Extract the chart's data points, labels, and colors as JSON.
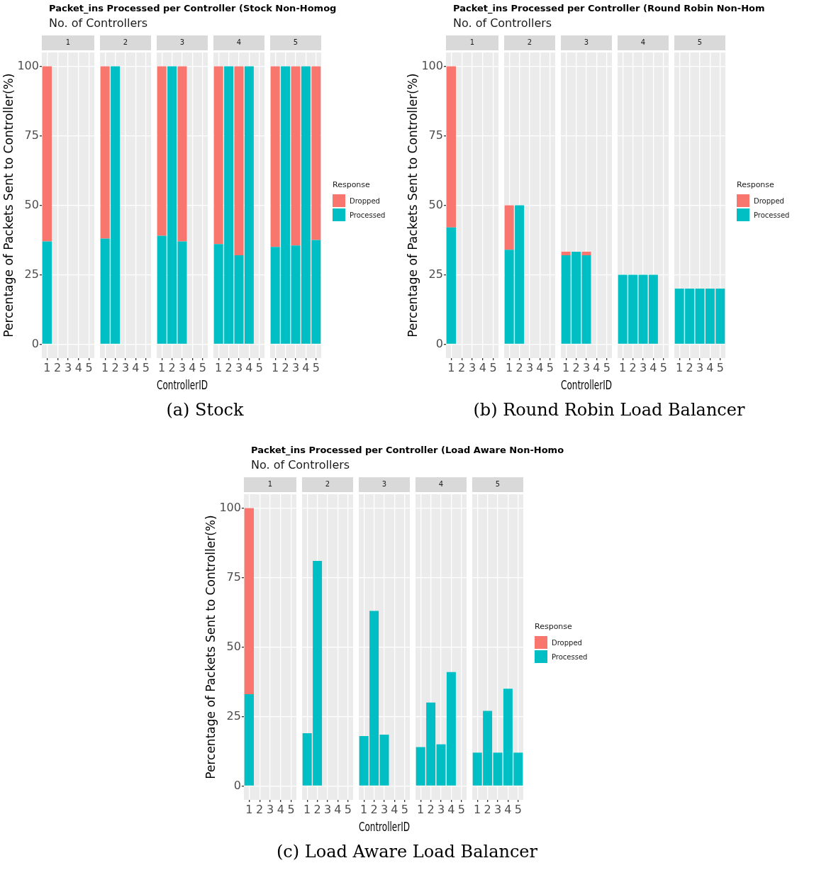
{
  "chart_data": [
    {
      "type": "other",
      "title": "Packet_ins Processed per Controller (Stock Non-Homog",
      "subtitle": "No. of Controllers",
      "annotations": [
        "(a) Stock"
      ]
    },
    {
      "type": "bar",
      "title": "1",
      "categories": [
        "1",
        "2",
        "3",
        "4",
        "5"
      ],
      "stacked": true,
      "ylim": [
        -5,
        105
      ],
      "yticks": [
        0,
        25,
        50,
        75,
        100
      ],
      "grid": true,
      "ylabel": "Percentage of Packets Sent to Controller(%)",
      "series": [
        {
          "color": "#00bfc4",
          "values": [
            37,
            null,
            null,
            null,
            null
          ]
        },
        {
          "color": "#f8766d",
          "values": [
            63,
            null,
            null,
            null,
            null
          ]
        }
      ]
    },
    {
      "type": "bar",
      "title": "2",
      "categories": [
        "1",
        "2",
        "3",
        "4",
        "5"
      ],
      "stacked": true,
      "ylim": [
        -5,
        105
      ],
      "yticks": [
        0,
        25,
        50,
        75,
        100
      ],
      "grid": true,
      "tick_labels": "x",
      "series": [
        {
          "color": "#00bfc4",
          "values": [
            38,
            100,
            null,
            null,
            null
          ]
        },
        {
          "color": "#f8766d",
          "values": [
            62,
            null,
            null,
            null,
            null
          ]
        }
      ]
    },
    {
      "type": "bar",
      "title": "3",
      "categories": [
        "1",
        "2",
        "3",
        "4",
        "5"
      ],
      "stacked": true,
      "ylim": [
        -5,
        105
      ],
      "yticks": [
        0,
        25,
        50,
        75,
        100
      ],
      "grid": true,
      "tick_labels": "x",
      "xlabel": "ControllerID",
      "series": [
        {
          "color": "#00bfc4",
          "values": [
            39,
            100,
            37,
            null,
            null
          ]
        },
        {
          "color": "#f8766d",
          "values": [
            61,
            null,
            63,
            null,
            null
          ]
        }
      ]
    },
    {
      "type": "bar",
      "title": "4",
      "categories": [
        "1",
        "2",
        "3",
        "4",
        "5"
      ],
      "stacked": true,
      "ylim": [
        -5,
        105
      ],
      "yticks": [
        0,
        25,
        50,
        75,
        100
      ],
      "grid": true,
      "tick_labels": "x",
      "series": [
        {
          "color": "#00bfc4",
          "values": [
            36,
            100,
            32,
            100,
            null
          ]
        },
        {
          "color": "#f8766d",
          "values": [
            64,
            null,
            68,
            null,
            null
          ]
        }
      ]
    },
    {
      "type": "bar",
      "title": "5",
      "categories": [
        "1",
        "2",
        "3",
        "4",
        "5"
      ],
      "stacked": true,
      "ylim": [
        -5,
        105
      ],
      "yticks": [
        0,
        25,
        50,
        75,
        100
      ],
      "grid": true,
      "tick_labels": "x",
      "legend": "right",
      "legend_title": "Response",
      "series": [
        {
          "name": "Processed",
          "color": "#00bfc4",
          "values": [
            35,
            100,
            35.5,
            100,
            37.5
          ]
        },
        {
          "name": "Dropped",
          "color": "#f8766d",
          "values": [
            65,
            null,
            64.5,
            null,
            62.5
          ]
        }
      ]
    },
    {
      "type": "other",
      "title": "Packet_ins Processed per Controller (Round Robin Non-Hom",
      "subtitle": "No. of Controllers",
      "annotations": [
        "(b) Round Robin Load Balancer"
      ]
    },
    {
      "type": "bar",
      "title": "1",
      "categories": [
        "1",
        "2",
        "3",
        "4",
        "5"
      ],
      "stacked": true,
      "ylim": [
        -5,
        105
      ],
      "yticks": [
        0,
        25,
        50,
        75,
        100
      ],
      "grid": true,
      "ylabel": "Percentage of Packets Sent to Controller(%)",
      "series": [
        {
          "color": "#00bfc4",
          "values": [
            42,
            null,
            null,
            null,
            null
          ]
        },
        {
          "color": "#f8766d",
          "values": [
            58,
            null,
            null,
            null,
            null
          ]
        }
      ]
    },
    {
      "type": "bar",
      "title": "2",
      "categories": [
        "1",
        "2",
        "3",
        "4",
        "5"
      ],
      "stacked": true,
      "ylim": [
        -5,
        105
      ],
      "yticks": [
        0,
        25,
        50,
        75,
        100
      ],
      "grid": true,
      "tick_labels": "x",
      "series": [
        {
          "color": "#00bfc4",
          "values": [
            34,
            50,
            null,
            null,
            null
          ]
        },
        {
          "color": "#f8766d",
          "values": [
            16,
            null,
            null,
            null,
            null
          ]
        }
      ]
    },
    {
      "type": "bar",
      "title": "3",
      "categories": [
        "1",
        "2",
        "3",
        "4",
        "5"
      ],
      "stacked": true,
      "ylim": [
        -5,
        105
      ],
      "yticks": [
        0,
        25,
        50,
        75,
        100
      ],
      "grid": true,
      "tick_labels": "x",
      "xlabel": "ControllerID",
      "series": [
        {
          "color": "#00bfc4",
          "values": [
            32,
            33.3,
            32,
            null,
            null
          ]
        },
        {
          "color": "#f8766d",
          "values": [
            1.3,
            null,
            1.3,
            null,
            null
          ]
        }
      ]
    },
    {
      "type": "bar",
      "title": "4",
      "categories": [
        "1",
        "2",
        "3",
        "4",
        "5"
      ],
      "stacked": true,
      "ylim": [
        -5,
        105
      ],
      "yticks": [
        0,
        25,
        50,
        75,
        100
      ],
      "grid": true,
      "tick_labels": "x",
      "series": [
        {
          "color": "#00bfc4",
          "values": [
            25,
            25,
            25,
            25,
            null
          ]
        },
        {
          "color": "#f8766d",
          "values": [
            null,
            null,
            null,
            null,
            null
          ]
        }
      ]
    },
    {
      "type": "bar",
      "title": "5",
      "categories": [
        "1",
        "2",
        "3",
        "4",
        "5"
      ],
      "stacked": true,
      "ylim": [
        -5,
        105
      ],
      "yticks": [
        0,
        25,
        50,
        75,
        100
      ],
      "grid": true,
      "tick_labels": "x",
      "legend": "right",
      "legend_title": "Response",
      "series": [
        {
          "name": "Processed",
          "color": "#00bfc4",
          "values": [
            20,
            20,
            20,
            20,
            20
          ]
        },
        {
          "name": "Dropped",
          "color": "#f8766d",
          "values": [
            null,
            null,
            null,
            null,
            null
          ]
        }
      ]
    },
    {
      "type": "other",
      "title": "Packet_ins Processed per Controller (Load Aware Non-Homo",
      "subtitle": "No. of Controllers",
      "annotations": [
        "(c) Load Aware Load Balancer"
      ]
    },
    {
      "type": "bar",
      "title": "1",
      "categories": [
        "1",
        "2",
        "3",
        "4",
        "5"
      ],
      "stacked": true,
      "ylim": [
        -5,
        105
      ],
      "yticks": [
        0,
        25,
        50,
        75,
        100
      ],
      "grid": true,
      "ylabel": "Percentage of Packets Sent to Controller(%)",
      "series": [
        {
          "color": "#00bfc4",
          "values": [
            33,
            null,
            null,
            null,
            null
          ]
        },
        {
          "color": "#f8766d",
          "values": [
            67,
            null,
            null,
            null,
            null
          ]
        }
      ]
    },
    {
      "type": "bar",
      "title": "2",
      "categories": [
        "1",
        "2",
        "3",
        "4",
        "5"
      ],
      "stacked": true,
      "ylim": [
        -5,
        105
      ],
      "yticks": [
        0,
        25,
        50,
        75,
        100
      ],
      "grid": true,
      "tick_labels": "x",
      "series": [
        {
          "color": "#00bfc4",
          "values": [
            19,
            81,
            null,
            null,
            null
          ]
        },
        {
          "color": "#f8766d",
          "values": [
            null,
            null,
            null,
            null,
            null
          ]
        }
      ]
    },
    {
      "type": "bar",
      "title": "3",
      "categories": [
        "1",
        "2",
        "3",
        "4",
        "5"
      ],
      "stacked": true,
      "ylim": [
        -5,
        105
      ],
      "yticks": [
        0,
        25,
        50,
        75,
        100
      ],
      "grid": true,
      "tick_labels": "x",
      "xlabel": "ControllerID",
      "series": [
        {
          "color": "#00bfc4",
          "values": [
            18,
            63,
            18.5,
            null,
            null
          ]
        },
        {
          "color": "#f8766d",
          "values": [
            null,
            null,
            null,
            null,
            null
          ]
        }
      ]
    },
    {
      "type": "bar",
      "title": "4",
      "categories": [
        "1",
        "2",
        "3",
        "4",
        "5"
      ],
      "stacked": true,
      "ylim": [
        -5,
        105
      ],
      "yticks": [
        0,
        25,
        50,
        75,
        100
      ],
      "grid": true,
      "tick_labels": "x",
      "series": [
        {
          "color": "#00bfc4",
          "values": [
            14,
            30,
            15,
            41,
            null
          ]
        },
        {
          "color": "#f8766d",
          "values": [
            null,
            null,
            null,
            null,
            null
          ]
        }
      ]
    },
    {
      "type": "bar",
      "title": "5",
      "categories": [
        "1",
        "2",
        "3",
        "4",
        "5"
      ],
      "stacked": true,
      "ylim": [
        -5,
        105
      ],
      "yticks": [
        0,
        25,
        50,
        75,
        100
      ],
      "grid": true,
      "tick_labels": "x",
      "legend": "right",
      "legend_title": "Response",
      "series": [
        {
          "name": "Processed",
          "color": "#00bfc4",
          "values": [
            12,
            27,
            12,
            35,
            12
          ]
        },
        {
          "name": "Dropped",
          "color": "#f8766d",
          "values": [
            null,
            null,
            null,
            null,
            null
          ]
        }
      ]
    }
  ]
}
